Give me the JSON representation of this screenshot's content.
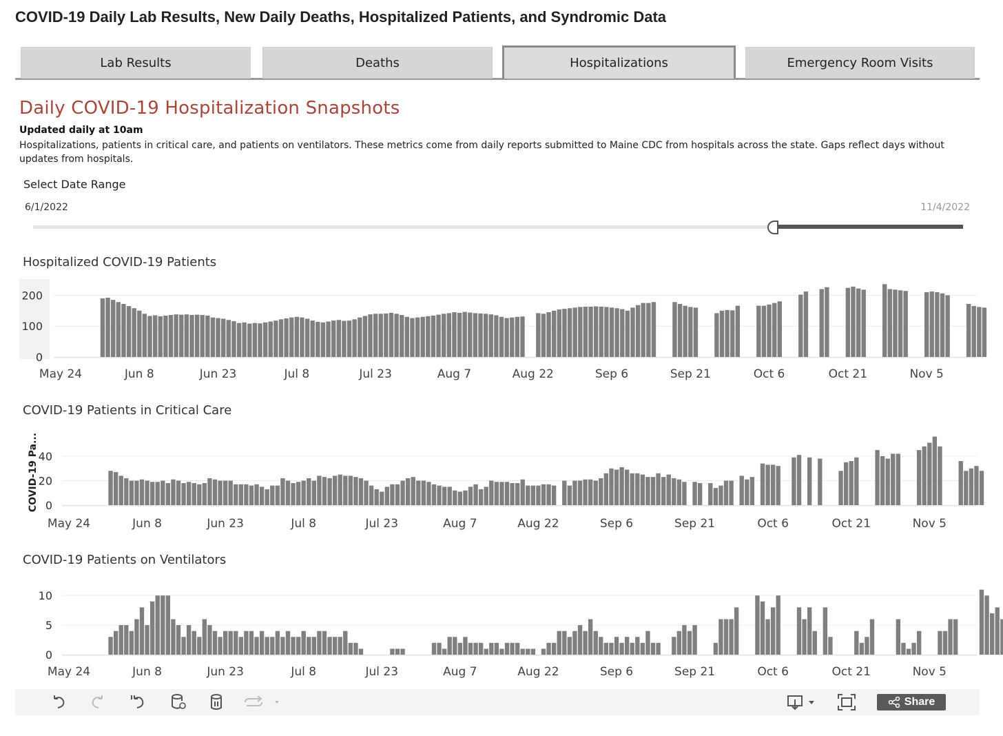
{
  "page": {
    "title": "COVID-19 Daily Lab Results, New Daily Deaths, Hospitalized Patients, and Syndromic Data"
  },
  "tabs": [
    {
      "label": "Lab Results",
      "active": false
    },
    {
      "label": "Deaths",
      "active": false
    },
    {
      "label": "Hospitalizations",
      "active": true
    },
    {
      "label": "Emergency Room Visits",
      "active": false
    }
  ],
  "section": {
    "title": "Daily COVID-19 Hospitalization  Snapshots",
    "updated": "Updated daily at 10am",
    "description": "Hospitalizations, patients in critical care, and patients on ventilators. These metrics come from daily reports submitted to Maine CDC from hospitals across the state. Gaps reflect days without updates from hospitals."
  },
  "date_range": {
    "label": "Select Date Range",
    "start": "6/1/2022",
    "end": "11/4/2022"
  },
  "toolbar": {
    "share_label": "Share"
  },
  "colors": {
    "bar": "#7f7f7f",
    "title_accent": "#a8463a"
  },
  "chart_data": [
    {
      "type": "bar",
      "title": "Hospitalized COVID-19 Patients",
      "ylabel": "",
      "ylim": [
        0,
        230
      ],
      "yticks": [
        0,
        100,
        200
      ],
      "x_start": "2022-05-24",
      "x_end": "2022-11-08",
      "xticks": [
        {
          "label": "May 24",
          "date": "2022-05-24"
        },
        {
          "label": "Jun 8",
          "date": "2022-06-08"
        },
        {
          "label": "Jun 23",
          "date": "2022-06-23"
        },
        {
          "label": "Jul 8",
          "date": "2022-07-08"
        },
        {
          "label": "Jul 23",
          "date": "2022-07-23"
        },
        {
          "label": "Aug 7",
          "date": "2022-08-07"
        },
        {
          "label": "Aug 22",
          "date": "2022-08-22"
        },
        {
          "label": "Sep 6",
          "date": "2022-09-06"
        },
        {
          "label": "Sep 21",
          "date": "2022-09-21"
        },
        {
          "label": "Oct 6",
          "date": "2022-10-06"
        },
        {
          "label": "Oct 21",
          "date": "2022-10-21"
        },
        {
          "label": "Nov 5",
          "date": "2022-11-05"
        }
      ],
      "start_date": "2022-06-01",
      "values": [
        190,
        192,
        185,
        178,
        172,
        165,
        158,
        150,
        140,
        133,
        135,
        132,
        134,
        136,
        138,
        137,
        138,
        136,
        137,
        136,
        134,
        128,
        126,
        124,
        120,
        116,
        110,
        112,
        108,
        110,
        109,
        112,
        115,
        118,
        122,
        125,
        128,
        130,
        128,
        124,
        118,
        114,
        112,
        115,
        118,
        120,
        117,
        118,
        122,
        128,
        133,
        138,
        140,
        140,
        141,
        143,
        140,
        136,
        130,
        126,
        128,
        130,
        132,
        134,
        137,
        140,
        142,
        145,
        143,
        146,
        144,
        142,
        141,
        140,
        138,
        135,
        130,
        126,
        128,
        130,
        131,
        null,
        null,
        142,
        140,
        145,
        150,
        154,
        156,
        158,
        160,
        162,
        163,
        163,
        164,
        163,
        162,
        160,
        158,
        155,
        150,
        160,
        168,
        175,
        175,
        178,
        null,
        null,
        null,
        178,
        172,
        166,
        162,
        160,
        null,
        null,
        null,
        142,
        150,
        152,
        151,
        166,
        null,
        null,
        null,
        166,
        166,
        170,
        175,
        180,
        null,
        null,
        null,
        202,
        212,
        null,
        null,
        220,
        226,
        null,
        null,
        null,
        224,
        228,
        222,
        218,
        null,
        null,
        null,
        236,
        220,
        218,
        216,
        214,
        null,
        null,
        null,
        210,
        212,
        210,
        206,
        200,
        null,
        null,
        null,
        172,
        165,
        162,
        160,
        null
      ]
    },
    {
      "type": "bar",
      "title": "COVID-19 Patients in Critical Care",
      "ylabel": "COVID-19 Pa...",
      "ylim": [
        0,
        58
      ],
      "yticks": [
        0,
        20,
        40
      ],
      "x_start": "2022-05-24",
      "x_end": "2022-11-08",
      "xticks": [
        {
          "label": "May 24",
          "date": "2022-05-24"
        },
        {
          "label": "Jun 8",
          "date": "2022-06-08"
        },
        {
          "label": "Jun 23",
          "date": "2022-06-23"
        },
        {
          "label": "Jul 8",
          "date": "2022-07-08"
        },
        {
          "label": "Jul 23",
          "date": "2022-07-23"
        },
        {
          "label": "Aug 7",
          "date": "2022-08-07"
        },
        {
          "label": "Aug 22",
          "date": "2022-08-22"
        },
        {
          "label": "Sep 6",
          "date": "2022-09-06"
        },
        {
          "label": "Sep 21",
          "date": "2022-09-21"
        },
        {
          "label": "Oct 6",
          "date": "2022-10-06"
        },
        {
          "label": "Oct 21",
          "date": "2022-10-21"
        },
        {
          "label": "Nov 5",
          "date": "2022-11-05"
        }
      ],
      "start_date": "2022-06-01",
      "values": [
        28,
        27,
        24,
        22,
        20,
        20,
        21,
        20,
        19,
        19,
        20,
        18,
        21,
        20,
        18,
        19,
        18,
        17,
        18,
        22,
        21,
        20,
        20,
        20,
        17,
        17,
        17,
        16,
        17,
        15,
        13,
        16,
        16,
        22,
        20,
        18,
        19,
        20,
        22,
        20,
        24,
        23,
        22,
        24,
        25,
        24,
        24,
        23,
        22,
        20,
        16,
        13,
        11,
        15,
        17,
        17,
        20,
        22,
        23,
        20,
        20,
        19,
        17,
        16,
        15,
        15,
        12,
        11,
        12,
        15,
        17,
        13,
        15,
        20,
        19,
        19,
        19,
        18,
        18,
        21,
        16,
        16,
        16,
        17,
        17,
        16,
        null,
        20,
        16,
        20,
        20,
        21,
        21,
        20,
        22,
        26,
        30,
        29,
        31,
        29,
        26,
        26,
        25,
        23,
        23,
        26,
        23,
        25,
        22,
        21,
        19,
        null,
        19,
        18,
        null,
        18,
        14,
        16,
        20,
        20,
        null,
        24,
        21,
        23,
        null,
        34,
        33,
        33,
        32,
        null,
        null,
        39,
        41,
        null,
        39,
        null,
        38,
        null,
        null,
        null,
        28,
        35,
        36,
        39,
        null,
        null,
        null,
        45,
        40,
        38,
        42,
        42,
        null,
        null,
        null,
        45,
        48,
        51,
        56,
        48,
        null,
        null,
        null,
        36,
        28,
        30,
        32,
        28
      ]
    },
    {
      "type": "bar",
      "title": "COVID-19 Patients on Ventilators",
      "ylabel": "",
      "ylim": [
        0,
        12
      ],
      "yticks": [
        0,
        5,
        10
      ],
      "x_start": "2022-05-24",
      "x_end": "2022-11-08",
      "xticks": [
        {
          "label": "May 24",
          "date": "2022-05-24"
        },
        {
          "label": "Jun 8",
          "date": "2022-06-08"
        },
        {
          "label": "Jun 23",
          "date": "2022-06-23"
        },
        {
          "label": "Jul 8",
          "date": "2022-07-08"
        },
        {
          "label": "Jul 23",
          "date": "2022-07-23"
        },
        {
          "label": "Aug 7",
          "date": "2022-08-07"
        },
        {
          "label": "Aug 22",
          "date": "2022-08-22"
        },
        {
          "label": "Sep 6",
          "date": "2022-09-06"
        },
        {
          "label": "Sep 21",
          "date": "2022-09-21"
        },
        {
          "label": "Oct 6",
          "date": "2022-10-06"
        },
        {
          "label": "Oct 21",
          "date": "2022-10-21"
        },
        {
          "label": "Nov 5",
          "date": "2022-11-05"
        }
      ],
      "start_date": "2022-06-01",
      "values": [
        3,
        4,
        5,
        5,
        4,
        6,
        8,
        5,
        9,
        10,
        10,
        10,
        6,
        5,
        3,
        5,
        4,
        3,
        6,
        5,
        4,
        3,
        4,
        4,
        4,
        3,
        4,
        4,
        3,
        4,
        3,
        3,
        4,
        3,
        4,
        3,
        3,
        4,
        3,
        3,
        4,
        4,
        3,
        3,
        3,
        4,
        2,
        2,
        1,
        null,
        null,
        null,
        null,
        null,
        1,
        1,
        1,
        null,
        null,
        null,
        null,
        null,
        2,
        2,
        1,
        3,
        3,
        2,
        3,
        2,
        2,
        2,
        1,
        2,
        2,
        1,
        2,
        2,
        2,
        1,
        1,
        1,
        null,
        1,
        2,
        2,
        4,
        4,
        3,
        4,
        5,
        4,
        6,
        4,
        3,
        2,
        2,
        3,
        2,
        3,
        2,
        3,
        2,
        4,
        2,
        2,
        null,
        null,
        3,
        4,
        5,
        4,
        5,
        null,
        null,
        null,
        2,
        6,
        6,
        6,
        8,
        null,
        null,
        null,
        10,
        9,
        6,
        8,
        10,
        null,
        null,
        null,
        8,
        6,
        8,
        4,
        null,
        8,
        3,
        null,
        null,
        null,
        null,
        4,
        2,
        3,
        6,
        null,
        null,
        null,
        null,
        6,
        2,
        1,
        2,
        4,
        null,
        null,
        null,
        4,
        4,
        6,
        6,
        null,
        null,
        null,
        null,
        11,
        10,
        7,
        8,
        6
      ]
    }
  ]
}
